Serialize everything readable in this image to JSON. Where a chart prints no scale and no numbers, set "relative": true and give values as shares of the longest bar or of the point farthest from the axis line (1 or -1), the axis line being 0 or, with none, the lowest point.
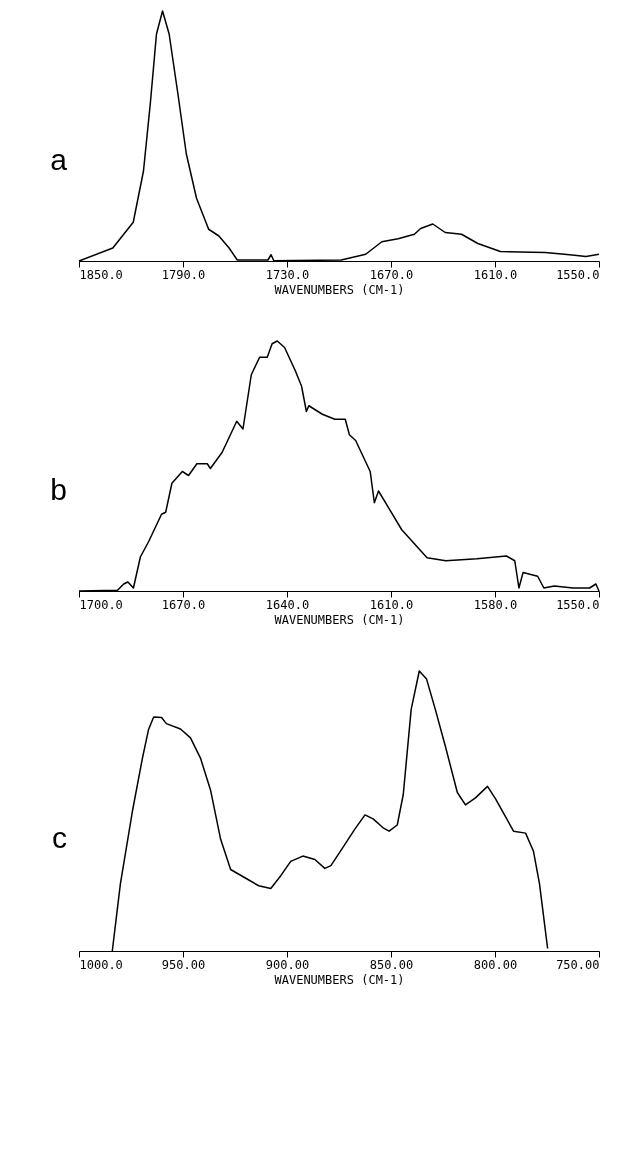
{
  "chart_data": [
    {
      "type": "line",
      "title": "a",
      "xlabel": "WAVENUMBERS (CM-1)",
      "relative": true,
      "grid": false,
      "color": "#000000",
      "xlim": [
        1850,
        1550
      ],
      "xticks": [
        {
          "value": 1850,
          "label": "1850.0"
        },
        {
          "value": 1790,
          "label": "1790.0"
        },
        {
          "value": 1730,
          "label": "1730.0"
        },
        {
          "value": 1670,
          "label": "1670.0"
        },
        {
          "value": 1610,
          "label": "1610.0"
        },
        {
          "value": 1550,
          "label": "1550.0"
        }
      ],
      "x": [
        1850,
        1830.5,
        1818.7,
        1812.8,
        1808.8,
        1805.3,
        1801.8,
        1798,
        1792.8,
        1788.1,
        1782.2,
        1775.2,
        1769.3,
        1763.4,
        1758.7,
        1741,
        1739.2,
        1737.6,
        1698.7,
        1684.6,
        1675.3,
        1665.9,
        1656.5,
        1652.9,
        1645.9,
        1638.7,
        1629.3,
        1619.9,
        1606.9,
        1581.1,
        1566.9,
        1557.5,
        1550
      ],
      "values": [
        0,
        0.052,
        0.155,
        0.36,
        0.634,
        0.908,
        1,
        0.908,
        0.662,
        0.429,
        0.251,
        0.127,
        0.1,
        0.052,
        0.004,
        0.004,
        0.025,
        0.001,
        0.004,
        0.027,
        0.077,
        0.089,
        0.107,
        0.13,
        0.148,
        0.114,
        0.107,
        0.07,
        0.038,
        0.034,
        0.025,
        0.018,
        0.027
      ]
    },
    {
      "type": "line",
      "title": "b",
      "xlabel": "WAVENUMBERS (CM-1)",
      "relative": true,
      "grid": false,
      "color": "#000000",
      "xlim": [
        1700,
        1550
      ],
      "xticks": [
        {
          "value": 1700,
          "label": "1700.0"
        },
        {
          "value": 1670,
          "label": "1670.0"
        },
        {
          "value": 1640,
          "label": "1640.0"
        },
        {
          "value": 1610,
          "label": "1610.0"
        },
        {
          "value": 1580,
          "label": "1580.0"
        },
        {
          "value": 1550,
          "label": "1550.0"
        }
      ],
      "x": [
        1700,
        1688.9,
        1687.1,
        1685.9,
        1684.3,
        1682.3,
        1679.9,
        1676.2,
        1675,
        1673.2,
        1670.2,
        1668.4,
        1666,
        1663,
        1662.1,
        1658.7,
        1654.5,
        1652.7,
        1650.3,
        1647.9,
        1645.7,
        1644.3,
        1642.8,
        1640.7,
        1637.6,
        1635.8,
        1634.4,
        1633.7,
        1629.8,
        1626.2,
        1623.2,
        1622,
        1620.2,
        1616,
        1614.8,
        1613.6,
        1606.9,
        1599.6,
        1594.2,
        1585.2,
        1576.7,
        1574.3,
        1573.1,
        1571.9,
        1567.7,
        1565.9,
        1562.9,
        1557.5,
        1552.7,
        1550.9,
        1550
      ],
      "values": [
        0,
        0.003,
        0.028,
        0.036,
        0.012,
        0.136,
        0.198,
        0.307,
        0.315,
        0.431,
        0.478,
        0.462,
        0.509,
        0.509,
        0.49,
        0.555,
        0.679,
        0.648,
        0.865,
        0.935,
        0.935,
        0.989,
        1,
        0.974,
        0.881,
        0.819,
        0.718,
        0.741,
        0.707,
        0.687,
        0.687,
        0.625,
        0.602,
        0.478,
        0.353,
        0.4,
        0.245,
        0.133,
        0.121,
        0.129,
        0.14,
        0.121,
        0.012,
        0.074,
        0.059,
        0.012,
        0.02,
        0.012,
        0.012,
        0.028,
        0
      ]
    },
    {
      "type": "line",
      "title": "c",
      "xlabel": "WAVENUMBERS (CM-1)",
      "relative": true,
      "grid": false,
      "color": "#000000",
      "xlim": [
        1000,
        750
      ],
      "xticks": [
        {
          "value": 1000,
          "label": "1000.0"
        },
        {
          "value": 950,
          "label": "950.00"
        },
        {
          "value": 900,
          "label": "900.00"
        },
        {
          "value": 850,
          "label": "850.00"
        },
        {
          "value": 800,
          "label": "800.00"
        },
        {
          "value": 750,
          "label": "750.00"
        }
      ],
      "x": [
        984,
        980.1,
        974.3,
        969.5,
        966.6,
        964.1,
        960.3,
        958,
        951.2,
        946.4,
        941.6,
        936.7,
        931.9,
        927.1,
        919.4,
        913.6,
        907.8,
        903,
        898.2,
        892.4,
        886.6,
        881.8,
        878.9,
        873.1,
        867.3,
        862.5,
        858.6,
        853.8,
        850.9,
        847,
        844.1,
        840.3,
        836.4,
        832.9,
        828.7,
        823.9,
        818.1,
        814.2,
        809.4,
        803.6,
        799.8,
        794.9,
        791.1,
        785.3,
        781.5,
        778.6,
        774.7
      ],
      "values": [
        0,
        0.24,
        0.5,
        0.689,
        0.79,
        0.836,
        0.834,
        0.812,
        0.793,
        0.761,
        0.689,
        0.573,
        0.399,
        0.291,
        0.258,
        0.233,
        0.223,
        0.269,
        0.32,
        0.339,
        0.327,
        0.295,
        0.305,
        0.37,
        0.436,
        0.486,
        0.472,
        0.44,
        0.428,
        0.45,
        0.559,
        0.863,
        1,
        0.971,
        0.863,
        0.732,
        0.566,
        0.522,
        0.547,
        0.588,
        0.544,
        0.479,
        0.428,
        0.421,
        0.356,
        0.24,
        0.009
      ]
    }
  ]
}
